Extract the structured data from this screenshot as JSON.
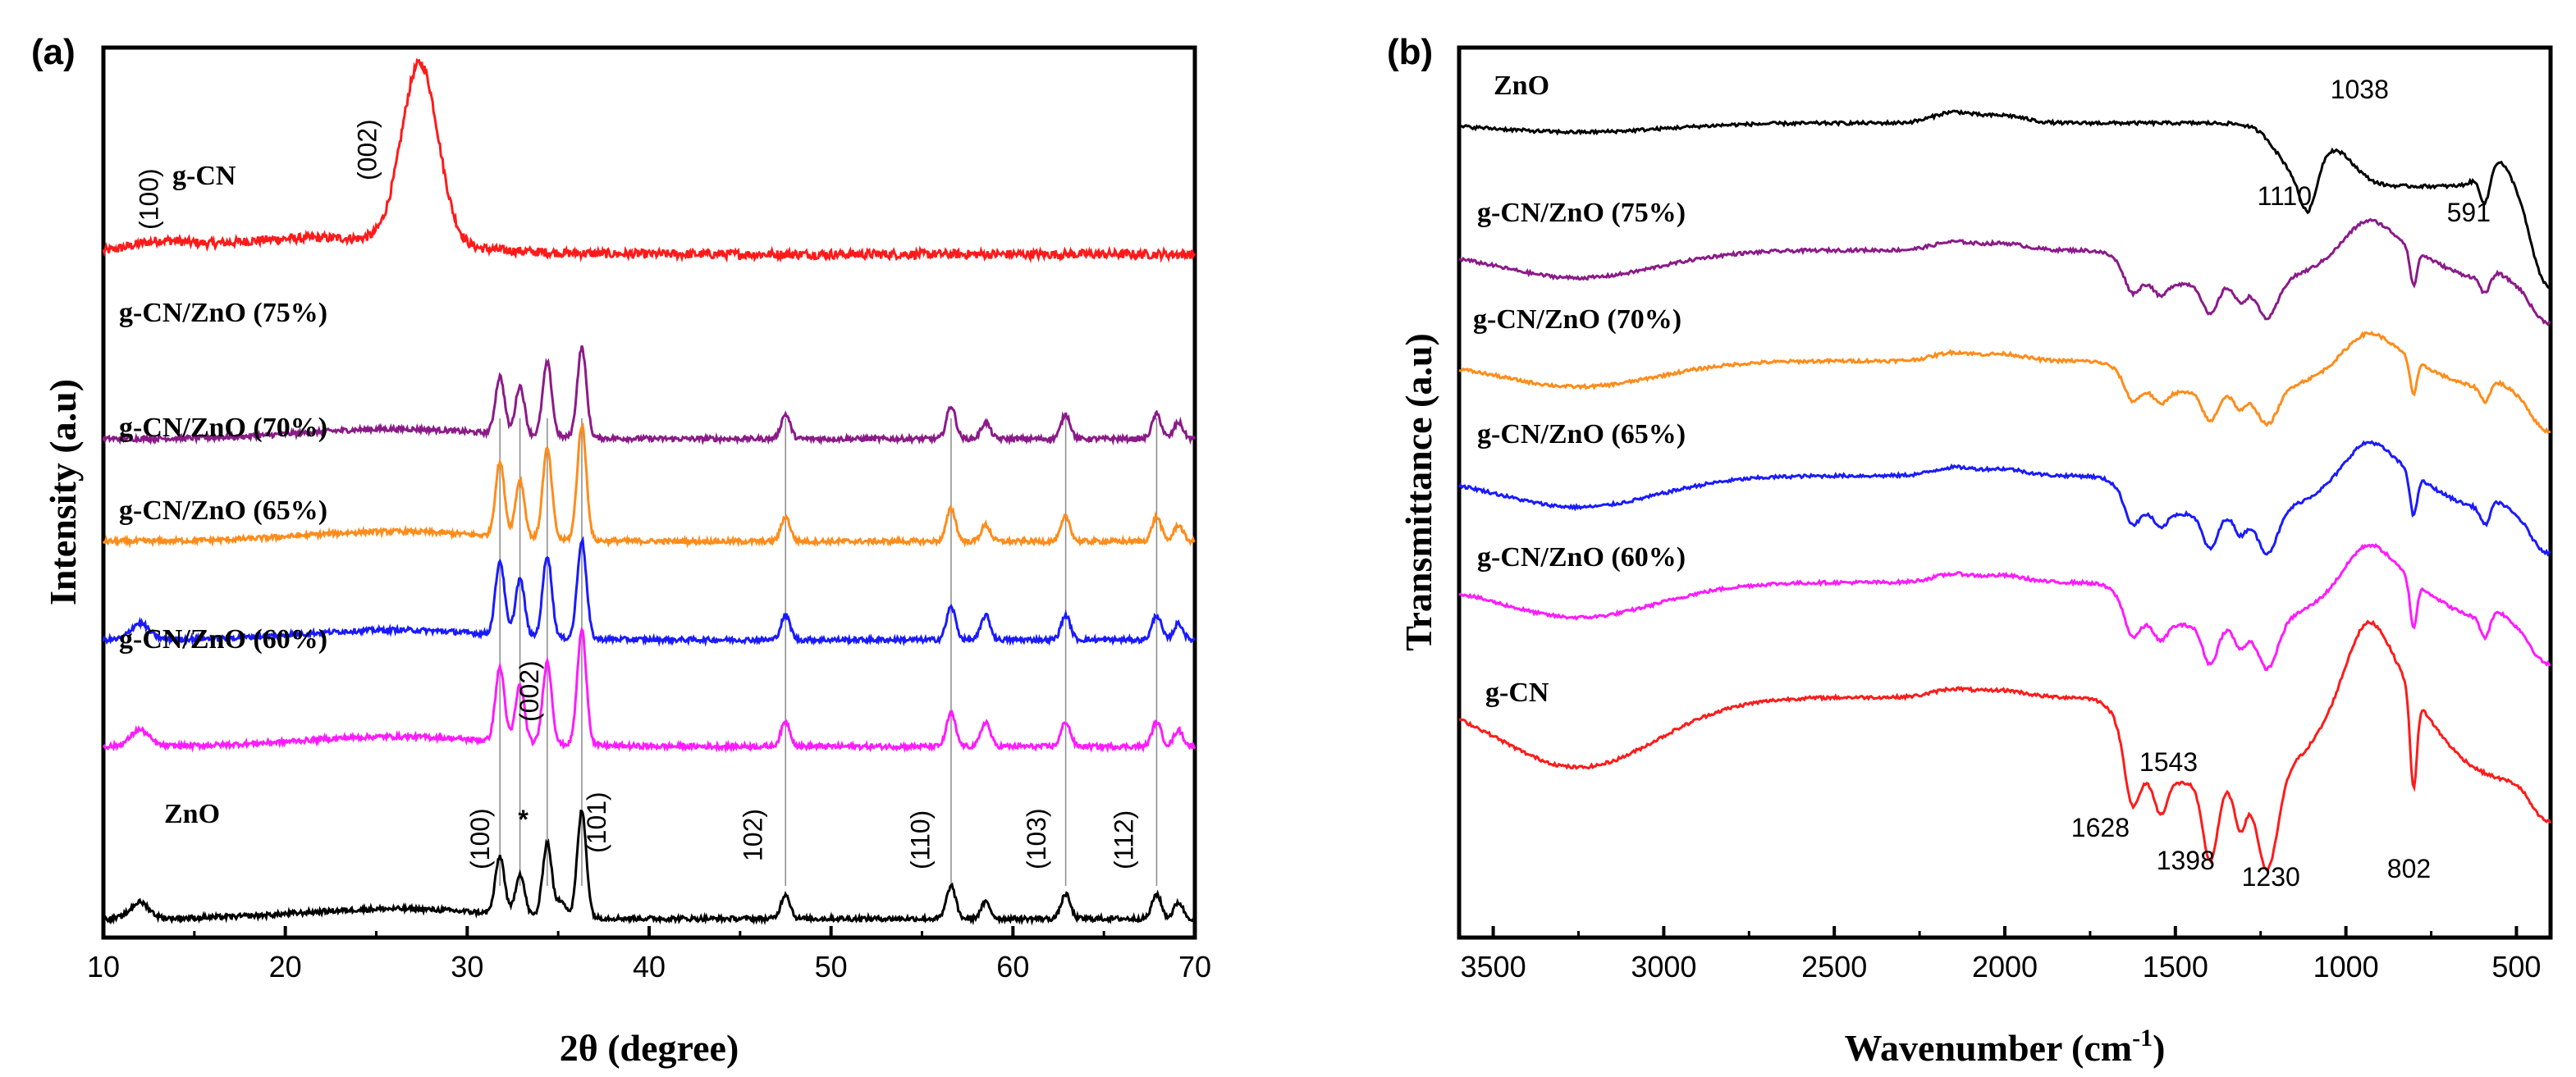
{
  "chart_data": [
    {
      "panel": "(a)",
      "type": "line",
      "xlabel": "2θ (degree)",
      "ylabel": "Intensity (a.u)",
      "xlim": [
        10,
        70
      ],
      "xticks": [
        10,
        20,
        30,
        40,
        50,
        60,
        70
      ],
      "xtick_labels": [
        "10",
        "20",
        "30",
        "40",
        "50",
        "60",
        "70"
      ],
      "grid": false,
      "peak_positions": [
        31.8,
        32.9,
        34.4,
        36.3,
        47.5,
        56.6,
        62.9,
        67.9
      ],
      "series": [
        {
          "name": "g-CN",
          "color": "#ff1a1a",
          "baseline": 0.77,
          "peaks": [
            [
              13.0,
              0.01,
              1.5
            ],
            [
              27.4,
              0.22,
              1.0
            ]
          ]
        },
        {
          "name": "g-CN/ZnO (75%)",
          "color": "#8b1a89",
          "baseline": 0.545,
          "peaks": [
            [
              31.8,
              0.07,
              0.25
            ],
            [
              32.9,
              0.06,
              0.25
            ],
            [
              34.4,
              0.09,
              0.25
            ],
            [
              36.3,
              0.11,
              0.25
            ],
            [
              47.5,
              0.03,
              0.25
            ],
            [
              56.6,
              0.04,
              0.25
            ],
            [
              58.5,
              0.02,
              0.25
            ],
            [
              62.9,
              0.03,
              0.25
            ],
            [
              67.9,
              0.03,
              0.25
            ],
            [
              69.1,
              0.02,
              0.25
            ]
          ]
        },
        {
          "name": "g-CN/ZnO (70%)",
          "color": "#ff8c1a",
          "baseline": 0.42,
          "peaks": [
            [
              31.8,
              0.09,
              0.25
            ],
            [
              32.9,
              0.07,
              0.25
            ],
            [
              34.4,
              0.11,
              0.25
            ],
            [
              36.3,
              0.14,
              0.25
            ],
            [
              47.5,
              0.03,
              0.25
            ],
            [
              56.6,
              0.04,
              0.25
            ],
            [
              58.5,
              0.02,
              0.25
            ],
            [
              62.9,
              0.03,
              0.25
            ],
            [
              67.9,
              0.03,
              0.25
            ],
            [
              69.1,
              0.02,
              0.25
            ]
          ]
        },
        {
          "name": "g-CN/ZnO (65%)",
          "color": "#1a1aff",
          "baseline": 0.3,
          "peaks": [
            [
              12.0,
              0.02,
              0.5
            ],
            [
              31.8,
              0.09,
              0.25
            ],
            [
              32.9,
              0.07,
              0.25
            ],
            [
              34.4,
              0.1,
              0.25
            ],
            [
              36.3,
              0.12,
              0.25
            ],
            [
              47.5,
              0.03,
              0.25
            ],
            [
              56.6,
              0.04,
              0.25
            ],
            [
              58.5,
              0.03,
              0.25
            ],
            [
              62.9,
              0.03,
              0.25
            ],
            [
              67.9,
              0.03,
              0.25
            ],
            [
              69.1,
              0.02,
              0.25
            ]
          ]
        },
        {
          "name": "g-CN/ZnO (60%)",
          "color": "#ff1aff",
          "baseline": 0.17,
          "peaks": [
            [
              12.0,
              0.02,
              0.5
            ],
            [
              31.8,
              0.09,
              0.25
            ],
            [
              32.9,
              0.07,
              0.25
            ],
            [
              34.4,
              0.1,
              0.25
            ],
            [
              36.3,
              0.14,
              0.25
            ],
            [
              47.5,
              0.03,
              0.25
            ],
            [
              56.6,
              0.04,
              0.25
            ],
            [
              58.5,
              0.03,
              0.25
            ],
            [
              62.9,
              0.03,
              0.25
            ],
            [
              67.9,
              0.03,
              0.25
            ],
            [
              69.1,
              0.02,
              0.25
            ]
          ]
        },
        {
          "name": "ZnO",
          "color": "#000000",
          "baseline": -0.04,
          "peaks": [
            [
              12.0,
              0.02,
              0.5
            ],
            [
              31.8,
              0.07,
              0.25
            ],
            [
              32.9,
              0.05,
              0.25
            ],
            [
              34.4,
              0.09,
              0.25
            ],
            [
              35.2,
              0.02,
              0.25
            ],
            [
              36.3,
              0.13,
              0.25
            ],
            [
              47.5,
              0.03,
              0.25
            ],
            [
              56.6,
              0.04,
              0.25
            ],
            [
              58.5,
              0.02,
              0.25
            ],
            [
              62.9,
              0.03,
              0.25
            ],
            [
              67.9,
              0.03,
              0.25
            ],
            [
              69.1,
              0.02,
              0.25
            ]
          ]
        }
      ],
      "annotations": [
        {
          "text": "(100)",
          "x": 13.0,
          "y": 0.8,
          "rotate": true
        },
        {
          "text": "(002)",
          "x": 25.0,
          "y": 0.86,
          "rotate": true
        },
        {
          "text": "(100)",
          "x": 31.2,
          "y": 0.02,
          "rotate": true
        },
        {
          "text": "*",
          "x": 32.8,
          "y": 0.07,
          "rotate": false
        },
        {
          "text": "(002)",
          "x": 33.9,
          "y": 0.2,
          "rotate": true
        },
        {
          "text": "(101)",
          "x": 37.6,
          "y": 0.04,
          "rotate": true
        },
        {
          "text": "102)",
          "x": 46.2,
          "y": 0.03,
          "rotate": true
        },
        {
          "text": "(110)",
          "x": 55.4,
          "y": 0.02,
          "rotate": true
        },
        {
          "text": "(103)",
          "x": 61.8,
          "y": 0.02,
          "rotate": true
        },
        {
          "text": "(112)",
          "x": 66.6,
          "y": 0.02,
          "rotate": true
        }
      ]
    },
    {
      "panel": "(b)",
      "type": "line",
      "xlabel": "Wavenumber (cm",
      "xlabel_sup": "-1",
      "xlabel_close": ")",
      "ylabel": "Transmittance (a.u)",
      "xlim": [
        3600,
        400
      ],
      "xticks": [
        3500,
        3000,
        2500,
        2000,
        1500,
        1000,
        500
      ],
      "xtick_labels": [
        "3500",
        "3000",
        "2500",
        "2000",
        "1500",
        "1000",
        "500"
      ],
      "grid": false,
      "series": [
        {
          "name": "ZnO",
          "color": "#000000",
          "offset": 0.93,
          "amp": 0.45
        },
        {
          "name": "g-CN/ZnO (75%)",
          "color": "#8b1a89",
          "offset": 0.775,
          "amp": 0.75
        },
        {
          "name": "g-CN/ZnO (70%)",
          "color": "#ff8c1a",
          "offset": 0.64,
          "amp": 0.7
        },
        {
          "name": "g-CN/ZnO (65%)",
          "color": "#1a1aff",
          "offset": 0.5,
          "amp": 0.85
        },
        {
          "name": "g-CN/ZnO (60%)",
          "color": "#ff1aff",
          "offset": 0.37,
          "amp": 0.95
        },
        {
          "name": "g-CN",
          "color": "#ff1a1a",
          "offset": 0.23,
          "amp": 1.9
        }
      ],
      "annotations": [
        {
          "text": "1038",
          "x": 960,
          "y": 0.96
        },
        {
          "text": "1110",
          "x": 1180,
          "y": 0.83
        },
        {
          "text": "591",
          "x": 640,
          "y": 0.81
        },
        {
          "text": "1543",
          "x": 1520,
          "y": 0.14
        },
        {
          "text": "1628",
          "x": 1720,
          "y": 0.06
        },
        {
          "text": "1398",
          "x": 1470,
          "y": 0.02
        },
        {
          "text": "1230",
          "x": 1220,
          "y": 0.0
        },
        {
          "text": "802",
          "x": 815,
          "y": 0.01
        }
      ]
    }
  ]
}
